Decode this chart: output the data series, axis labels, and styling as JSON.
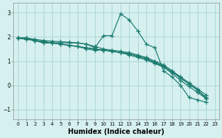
{
  "xlabel": "Humidex (Indice chaleur)",
  "ylabel": "",
  "background_color": "#d6f0f0",
  "grid_color": "#b0d8d8",
  "line_color": "#1a7a6e",
  "xlim": [
    -0.5,
    23.5
  ],
  "ylim": [
    -1.4,
    3.4
  ],
  "yticks": [
    -1,
    0,
    1,
    2,
    3
  ],
  "xticks": [
    0,
    1,
    2,
    3,
    4,
    5,
    6,
    7,
    8,
    9,
    10,
    11,
    12,
    13,
    14,
    15,
    16,
    17,
    18,
    19,
    20,
    21,
    22,
    23
  ],
  "series": [
    [
      1.95,
      1.95,
      1.85,
      1.75,
      1.75,
      1.75,
      1.75,
      1.75,
      1.7,
      1.55,
      2.05,
      2.05,
      2.95,
      2.7,
      2.25,
      1.7,
      1.55,
      0.6,
      0.35,
      0.0,
      -0.5,
      -0.6,
      -0.7
    ],
    [
      1.95,
      1.95,
      1.85,
      1.75,
      1.75,
      1.7,
      1.65,
      1.6,
      1.5,
      1.45,
      1.45,
      1.4,
      1.35,
      1.25,
      1.15,
      1.05,
      0.9,
      0.75,
      0.5,
      0.2,
      -0.05,
      -0.3,
      -0.55
    ],
    [
      1.95,
      1.9,
      1.85,
      1.8,
      1.75,
      1.7,
      1.65,
      1.6,
      1.55,
      1.5,
      1.45,
      1.4,
      1.35,
      1.3,
      1.2,
      1.1,
      0.95,
      0.8,
      0.6,
      0.35,
      0.1,
      -0.15,
      -0.4
    ],
    [
      1.95,
      1.9,
      1.85,
      1.8,
      1.75,
      1.7,
      1.65,
      1.6,
      1.55,
      1.5,
      1.45,
      1.4,
      1.35,
      1.3,
      1.2,
      1.1,
      0.95,
      0.75,
      0.55,
      0.3,
      0.05,
      -0.2,
      -0.5
    ],
    [
      1.95,
      1.95,
      1.9,
      1.85,
      1.82,
      1.8,
      1.78,
      1.75,
      1.7,
      1.6,
      1.5,
      1.45,
      1.4,
      1.35,
      1.25,
      1.15,
      1.0,
      0.85,
      0.6,
      0.3,
      0.05,
      -0.2,
      -0.55
    ]
  ]
}
